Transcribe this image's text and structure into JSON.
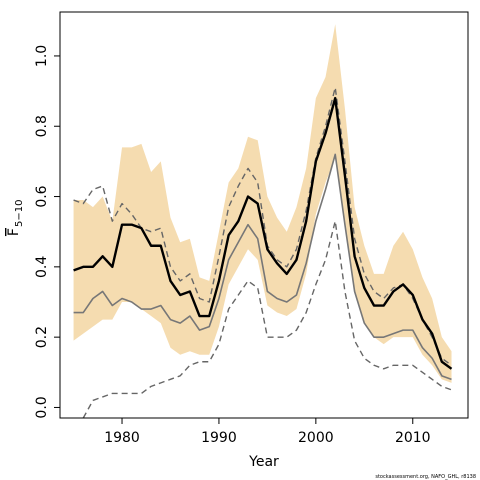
{
  "chart_data": {
    "type": "line",
    "xlabel": "Year",
    "ylabel": "F",
    "ylabel_sub": "5−10",
    "footer": "stockassessment.org, NAFO_GHL, r8138",
    "x": [
      1975,
      1976,
      1977,
      1978,
      1979,
      1980,
      1981,
      1982,
      1983,
      1984,
      1985,
      1986,
      1987,
      1988,
      1989,
      1990,
      1991,
      1992,
      1993,
      1994,
      1995,
      1996,
      1997,
      1998,
      1999,
      2000,
      2001,
      2002,
      2003,
      2004,
      2005,
      2006,
      2007,
      2008,
      2009,
      2010,
      2011,
      2012,
      2013,
      2014
    ],
    "xlim": [
      1973.6,
      2015.7
    ],
    "xticks": [
      1980,
      1990,
      2000,
      2010
    ],
    "ylim": [
      -0.03,
      1.125
    ],
    "yticks": [
      {
        "value": 0,
        "label": "0.0"
      },
      0.2,
      0.4,
      0.6,
      0.8,
      {
        "value": 1,
        "label": "1.0"
      }
    ],
    "band": {
      "color": "#f5dcb0",
      "upper": [
        0.59,
        0.59,
        0.57,
        0.6,
        0.53,
        0.74,
        0.74,
        0.75,
        0.67,
        0.7,
        0.54,
        0.47,
        0.48,
        0.37,
        0.36,
        0.5,
        0.64,
        0.68,
        0.77,
        0.76,
        0.6,
        0.54,
        0.5,
        0.57,
        0.68,
        0.88,
        0.94,
        1.09,
        0.85,
        0.57,
        0.46,
        0.38,
        0.38,
        0.46,
        0.5,
        0.45,
        0.37,
        0.31,
        0.2,
        0.16
      ],
      "lower": [
        0.19,
        0.21,
        0.23,
        0.25,
        0.25,
        0.3,
        0.3,
        0.28,
        0.26,
        0.24,
        0.17,
        0.15,
        0.16,
        0.15,
        0.15,
        0.23,
        0.35,
        0.4,
        0.45,
        0.42,
        0.29,
        0.27,
        0.26,
        0.28,
        0.38,
        0.55,
        0.64,
        0.71,
        0.52,
        0.33,
        0.24,
        0.2,
        0.18,
        0.2,
        0.2,
        0.2,
        0.15,
        0.12,
        0.08,
        0.07
      ]
    },
    "series": [
      {
        "color": "#777777",
        "style": "solid",
        "width": 1.6,
        "values": [
          0.27,
          0.27,
          0.31,
          0.33,
          0.29,
          0.31,
          0.3,
          0.28,
          0.28,
          0.29,
          0.25,
          0.24,
          0.26,
          0.22,
          0.23,
          0.31,
          0.42,
          0.47,
          0.52,
          0.48,
          0.33,
          0.31,
          0.3,
          0.32,
          0.41,
          0.53,
          0.62,
          0.72,
          0.52,
          0.33,
          0.24,
          0.2,
          0.2,
          0.21,
          0.22,
          0.22,
          0.17,
          0.14,
          0.09,
          0.08
        ]
      },
      {
        "color": "#666666",
        "style": "dashed",
        "width": 1.4,
        "values": [
          0.59,
          0.58,
          0.62,
          0.63,
          0.53,
          0.58,
          0.55,
          0.51,
          0.5,
          0.51,
          0.4,
          0.36,
          0.38,
          0.31,
          0.3,
          0.43,
          0.57,
          0.63,
          0.68,
          0.64,
          0.46,
          0.42,
          0.4,
          0.45,
          0.56,
          0.71,
          0.8,
          0.91,
          0.7,
          0.48,
          0.38,
          0.33,
          0.31,
          0.34,
          0.35,
          0.31,
          0.25,
          0.2,
          0.14,
          0.12
        ]
      },
      {
        "color": "#666666",
        "style": "dashed",
        "width": 1.4,
        "values": [
          null,
          -0.03,
          0.02,
          0.03,
          0.04,
          0.04,
          0.04,
          0.04,
          0.06,
          0.07,
          0.08,
          0.09,
          0.12,
          0.13,
          0.13,
          0.18,
          0.28,
          0.32,
          0.36,
          0.34,
          0.2,
          0.2,
          0.2,
          0.22,
          0.27,
          0.35,
          0.42,
          0.53,
          0.33,
          0.19,
          0.14,
          0.12,
          0.11,
          0.12,
          0.12,
          0.12,
          0.1,
          0.08,
          0.06,
          0.05
        ]
      },
      {
        "color": "#000000",
        "style": "solid",
        "width": 2.4,
        "values": [
          0.39,
          0.4,
          0.4,
          0.43,
          0.4,
          0.52,
          0.52,
          0.51,
          0.46,
          0.46,
          0.36,
          0.32,
          0.33,
          0.26,
          0.26,
          0.36,
          0.49,
          0.53,
          0.6,
          0.58,
          0.45,
          0.41,
          0.38,
          0.42,
          0.53,
          0.7,
          0.78,
          0.88,
          0.66,
          0.43,
          0.34,
          0.29,
          0.29,
          0.33,
          0.35,
          0.32,
          0.25,
          0.21,
          0.13,
          0.11
        ]
      }
    ]
  }
}
